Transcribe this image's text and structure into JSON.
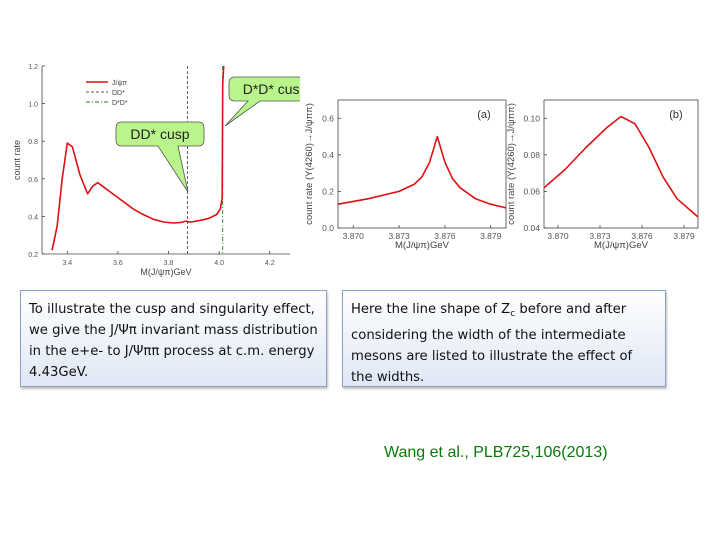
{
  "slide": {
    "left_text": "To illustrate the cusp and singularity effect, we give the J/Ψπ invariant mass distribution in the e+e- to J/Ψππ process at c.m. energy 4.43GeV.",
    "right_text_before": "Here the line shape of Z",
    "right_text_sub": "c",
    "right_text_after": " before and after considering the width of the intermediate mesons are listed to illustrate the effect of the widths.",
    "citation": "Wang et al., PLB725,106(2013)",
    "callout_dstar_dstar": "D*D* cusp",
    "callout_d_dstar": "DD* cusp"
  },
  "colors": {
    "curve": "#dd1111",
    "threshold_dd": "#555555",
    "threshold_dsds": "#1a8a1a",
    "callout_bg": "#b9f58a",
    "citation": "#0a7a0a"
  },
  "chart_data": [
    {
      "id": "main",
      "type": "line",
      "title": "",
      "xlabel": "M(J/ψπ)GeV",
      "ylabel": "count rate",
      "xlim": [
        3.3,
        4.28
      ],
      "ylim": [
        0.2,
        1.2
      ],
      "xticks": [
        "3.4",
        "3.6",
        "3.8",
        "4.0",
        "4.2"
      ],
      "yticks": [
        "0.2",
        "0.4",
        "0.6",
        "0.8",
        "1.0",
        "1.2"
      ],
      "legend": [
        "J/ψπ",
        "DD*",
        "D*D*"
      ],
      "vlines": {
        "DD*": 3.875,
        "D*D*": 4.014
      },
      "series": [
        {
          "name": "J/ψπ",
          "x": [
            3.34,
            3.36,
            3.38,
            3.4,
            3.42,
            3.45,
            3.48,
            3.5,
            3.52,
            3.54,
            3.57,
            3.6,
            3.63,
            3.66,
            3.7,
            3.74,
            3.78,
            3.82,
            3.85,
            3.87,
            3.875,
            3.89,
            3.93,
            3.96,
            3.99,
            4.005,
            4.012,
            4.014,
            4.02,
            4.05
          ],
          "values": [
            0.22,
            0.35,
            0.6,
            0.79,
            0.77,
            0.62,
            0.52,
            0.56,
            0.58,
            0.56,
            0.53,
            0.5,
            0.47,
            0.44,
            0.41,
            0.385,
            0.37,
            0.365,
            0.368,
            0.375,
            0.372,
            0.37,
            0.38,
            0.39,
            0.41,
            0.44,
            0.5,
            1.1,
            1.25,
            1.25
          ]
        }
      ]
    },
    {
      "id": "a",
      "type": "line",
      "panel_label": "(a)",
      "xlabel": "M(J/ψπ)GeV",
      "ylabel": "count rate (Y(4260)→J/ψππ)",
      "xlim": [
        3.869,
        3.88
      ],
      "ylim": [
        0.0,
        0.7
      ],
      "xticks": [
        "3.870",
        "3.873",
        "3.876",
        "3.879"
      ],
      "yticks": [
        "0.0",
        "0.2",
        "0.4",
        "0.6"
      ],
      "series": [
        {
          "name": "Zc",
          "x": [
            3.869,
            3.871,
            3.873,
            3.874,
            3.8745,
            3.875,
            3.8755,
            3.876,
            3.8765,
            3.877,
            3.878,
            3.879,
            3.88
          ],
          "values": [
            0.13,
            0.16,
            0.2,
            0.24,
            0.28,
            0.36,
            0.5,
            0.36,
            0.27,
            0.22,
            0.16,
            0.13,
            0.11
          ]
        }
      ]
    },
    {
      "id": "b",
      "type": "line",
      "panel_label": "(b)",
      "xlabel": "M(J/ψπ)GeV",
      "ylabel": "count rate (Y(4260)→J/ψππ)",
      "xlim": [
        3.869,
        3.88
      ],
      "ylim": [
        0.04,
        0.11
      ],
      "xticks": [
        "3.870",
        "3.873",
        "3.876",
        "3.879"
      ],
      "yticks": [
        "0.04",
        "0.06",
        "0.08",
        "0.10"
      ],
      "series": [
        {
          "name": "Zc",
          "x": [
            3.869,
            3.8705,
            3.872,
            3.8735,
            3.8745,
            3.8755,
            3.8765,
            3.8775,
            3.8785,
            3.88
          ],
          "values": [
            0.062,
            0.072,
            0.084,
            0.095,
            0.101,
            0.097,
            0.084,
            0.068,
            0.056,
            0.046
          ]
        }
      ]
    }
  ]
}
